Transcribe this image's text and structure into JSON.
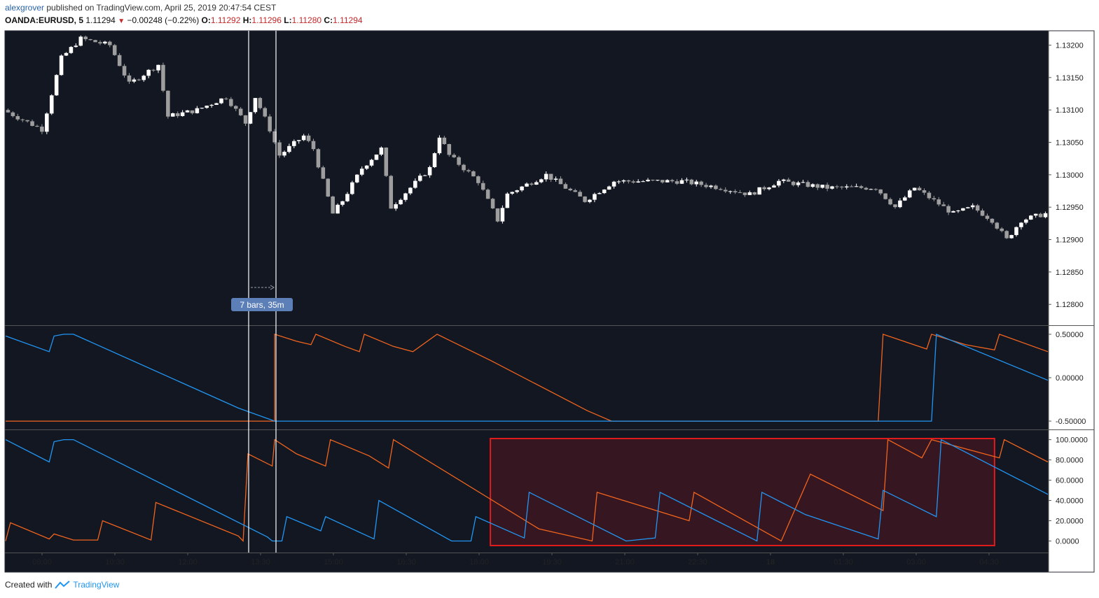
{
  "header": {
    "author": "alexgrover",
    "published_text": "published on TradingView.com, April 25, 2019 20:47:54 CEST"
  },
  "symbol": {
    "ticker": "OANDA:EURUSD, 5",
    "last": "1.11294",
    "change": "−0.00248 (−0.22%)",
    "o_label": "O:",
    "o_value": "1.11292",
    "h_label": "H:",
    "h_value": "1.11296",
    "l_label": "L:",
    "l_value": "1.11280",
    "c_label": "C:",
    "c_value": "1.11294"
  },
  "measure_label": "7 bars, 35m",
  "time_axis": [
    "09:00",
    "10:30",
    "12:00",
    "13:30",
    "15:00",
    "16:30",
    "18:00",
    "19:30",
    "21:00",
    "22:30",
    "18",
    "01:30",
    "03:00",
    "04:30"
  ],
  "footer": {
    "created_with": "Created with",
    "brand": "TradingView"
  },
  "colors": {
    "background": "#131722",
    "candle_up": "#ffffff",
    "candle_down": "#9e9e9e",
    "osc_orange": "#f0641e",
    "osc_blue": "#2196f3",
    "highlight_border": "#e01b1b",
    "highlight_fill": "rgba(120,20,30,0.35)",
    "measure_label_bg": "#5d7fb8"
  },
  "chart_data": [
    {
      "type": "candlestick",
      "title": "OANDA:EURUSD, 5",
      "y_ticks": [
        "1.13200",
        "1.13150",
        "1.13100",
        "1.13050",
        "1.13000",
        "1.12950",
        "1.12900",
        "1.12850",
        "1.12800"
      ],
      "ylim": [
        1.1277,
        1.1322
      ],
      "close_path": [
        [
          0,
          1.131
        ],
        [
          8,
          1.1307
        ],
        [
          12,
          1.1318
        ],
        [
          16,
          1.1321
        ],
        [
          22,
          1.132
        ],
        [
          26,
          1.1314
        ],
        [
          32,
          1.1317
        ],
        [
          34,
          1.1309
        ],
        [
          40,
          1.131
        ],
        [
          46,
          1.1312
        ],
        [
          50,
          1.1308
        ],
        [
          52,
          1.1312
        ],
        [
          55,
          1.1307
        ],
        [
          57,
          1.1303
        ],
        [
          62,
          1.1306
        ],
        [
          64,
          1.1304
        ],
        [
          68,
          1.1294
        ],
        [
          70,
          1.1296
        ],
        [
          74,
          1.1301
        ],
        [
          78,
          1.1304
        ],
        [
          80,
          1.1295
        ],
        [
          84,
          1.1298
        ],
        [
          88,
          1.1301
        ],
        [
          90,
          1.1306
        ],
        [
          92,
          1.1303
        ],
        [
          98,
          1.1299
        ],
        [
          102,
          1.1293
        ],
        [
          104,
          1.1297
        ],
        [
          112,
          1.13
        ],
        [
          120,
          1.1296
        ],
        [
          126,
          1.1299
        ],
        [
          140,
          1.1299
        ],
        [
          148,
          1.1298
        ],
        [
          154,
          1.1297
        ],
        [
          160,
          1.1299
        ],
        [
          170,
          1.1298
        ],
        [
          180,
          1.1298
        ],
        [
          184,
          1.1295
        ],
        [
          188,
          1.1298
        ],
        [
          192,
          1.1296
        ],
        [
          196,
          1.1294
        ],
        [
          200,
          1.1295
        ],
        [
          204,
          1.1293
        ],
        [
          207,
          1.129
        ],
        [
          210,
          1.1293
        ],
        [
          215,
          1.1294
        ]
      ]
    },
    {
      "type": "line",
      "y_ticks": [
        "0.50000",
        "0.00000",
        "-0.50000"
      ],
      "ylim": [
        -0.58,
        0.58
      ],
      "series": [
        {
          "color": "orange",
          "points": [
            [
              0,
              -0.5
            ],
            [
              55.5,
              -0.5
            ],
            [
              55.5,
              0.5
            ],
            [
              60,
              0.42
            ],
            [
              63,
              0.38
            ],
            [
              64,
              0.5
            ],
            [
              70,
              0.36
            ],
            [
              73,
              0.3
            ],
            [
              74,
              0.5
            ],
            [
              80,
              0.36
            ],
            [
              84,
              0.3
            ],
            [
              89,
              0.5
            ],
            [
              100,
              0.2
            ],
            [
              120,
              -0.38
            ],
            [
              125,
              -0.5
            ],
            [
              180,
              -0.5
            ],
            [
              181,
              0.5
            ],
            [
              190,
              0.33
            ],
            [
              191,
              0.5
            ],
            [
              198,
              0.38
            ],
            [
              204,
              0.32
            ],
            [
              205,
              0.5
            ],
            [
              215,
              0.3
            ]
          ]
        },
        {
          "color": "blue",
          "points": [
            [
              0,
              0.48
            ],
            [
              9,
              0.3
            ],
            [
              10,
              0.48
            ],
            [
              12,
              0.5
            ],
            [
              14,
              0.5
            ],
            [
              48,
              -0.35
            ],
            [
              55.5,
              -0.5
            ],
            [
              191,
              -0.5
            ],
            [
              192,
              0.5
            ],
            [
              215,
              -0.03
            ]
          ]
        }
      ]
    },
    {
      "type": "line",
      "y_ticks": [
        "100.0000",
        "80.0000",
        "60.0000",
        "40.0000",
        "20.0000",
        "0.0000"
      ],
      "ylim": [
        -10,
        108
      ],
      "series": [
        {
          "color": "orange",
          "points": [
            [
              0,
              0
            ],
            [
              1,
              18
            ],
            [
              9,
              2
            ],
            [
              10,
              7
            ],
            [
              14,
              1
            ],
            [
              19,
              1
            ],
            [
              20,
              20
            ],
            [
              30,
              1
            ],
            [
              31,
              38
            ],
            [
              48,
              5
            ],
            [
              49,
              0
            ],
            [
              50,
              86
            ],
            [
              55,
              74
            ],
            [
              55.5,
              100
            ],
            [
              60,
              86
            ],
            [
              66,
              74
            ],
            [
              67,
              100
            ],
            [
              75,
              84
            ],
            [
              79,
              72
            ],
            [
              80,
              100
            ],
            [
              110,
              12
            ],
            [
              121,
              0
            ],
            [
              122,
              48
            ],
            [
              141,
              20
            ],
            [
              142,
              48
            ],
            [
              160,
              0
            ],
            [
              166,
              66
            ],
            [
              181,
              30
            ],
            [
              182,
              100
            ],
            [
              189,
              82
            ],
            [
              191,
              100
            ],
            [
              205,
              82
            ],
            [
              206,
              100
            ],
            [
              215,
              78
            ]
          ]
        },
        {
          "color": "blue",
          "points": [
            [
              0,
              100
            ],
            [
              9,
              78
            ],
            [
              10,
              98
            ],
            [
              12,
              100
            ],
            [
              14,
              100
            ],
            [
              54,
              4
            ],
            [
              55,
              0
            ],
            [
              57,
              0
            ],
            [
              58,
              24
            ],
            [
              65,
              10
            ],
            [
              66,
              24
            ],
            [
              76,
              2
            ],
            [
              77,
              40
            ],
            [
              92,
              0
            ],
            [
              96,
              0
            ],
            [
              97,
              24
            ],
            [
              107,
              3
            ],
            [
              108,
              48
            ],
            [
              128,
              0
            ],
            [
              134,
              3
            ],
            [
              135,
              48
            ],
            [
              155,
              0
            ],
            [
              156,
              48
            ],
            [
              165,
              26
            ],
            [
              180,
              2
            ],
            [
              181,
              50
            ],
            [
              192,
              24
            ],
            [
              193,
              100
            ],
            [
              215,
              46
            ]
          ]
        }
      ]
    }
  ]
}
